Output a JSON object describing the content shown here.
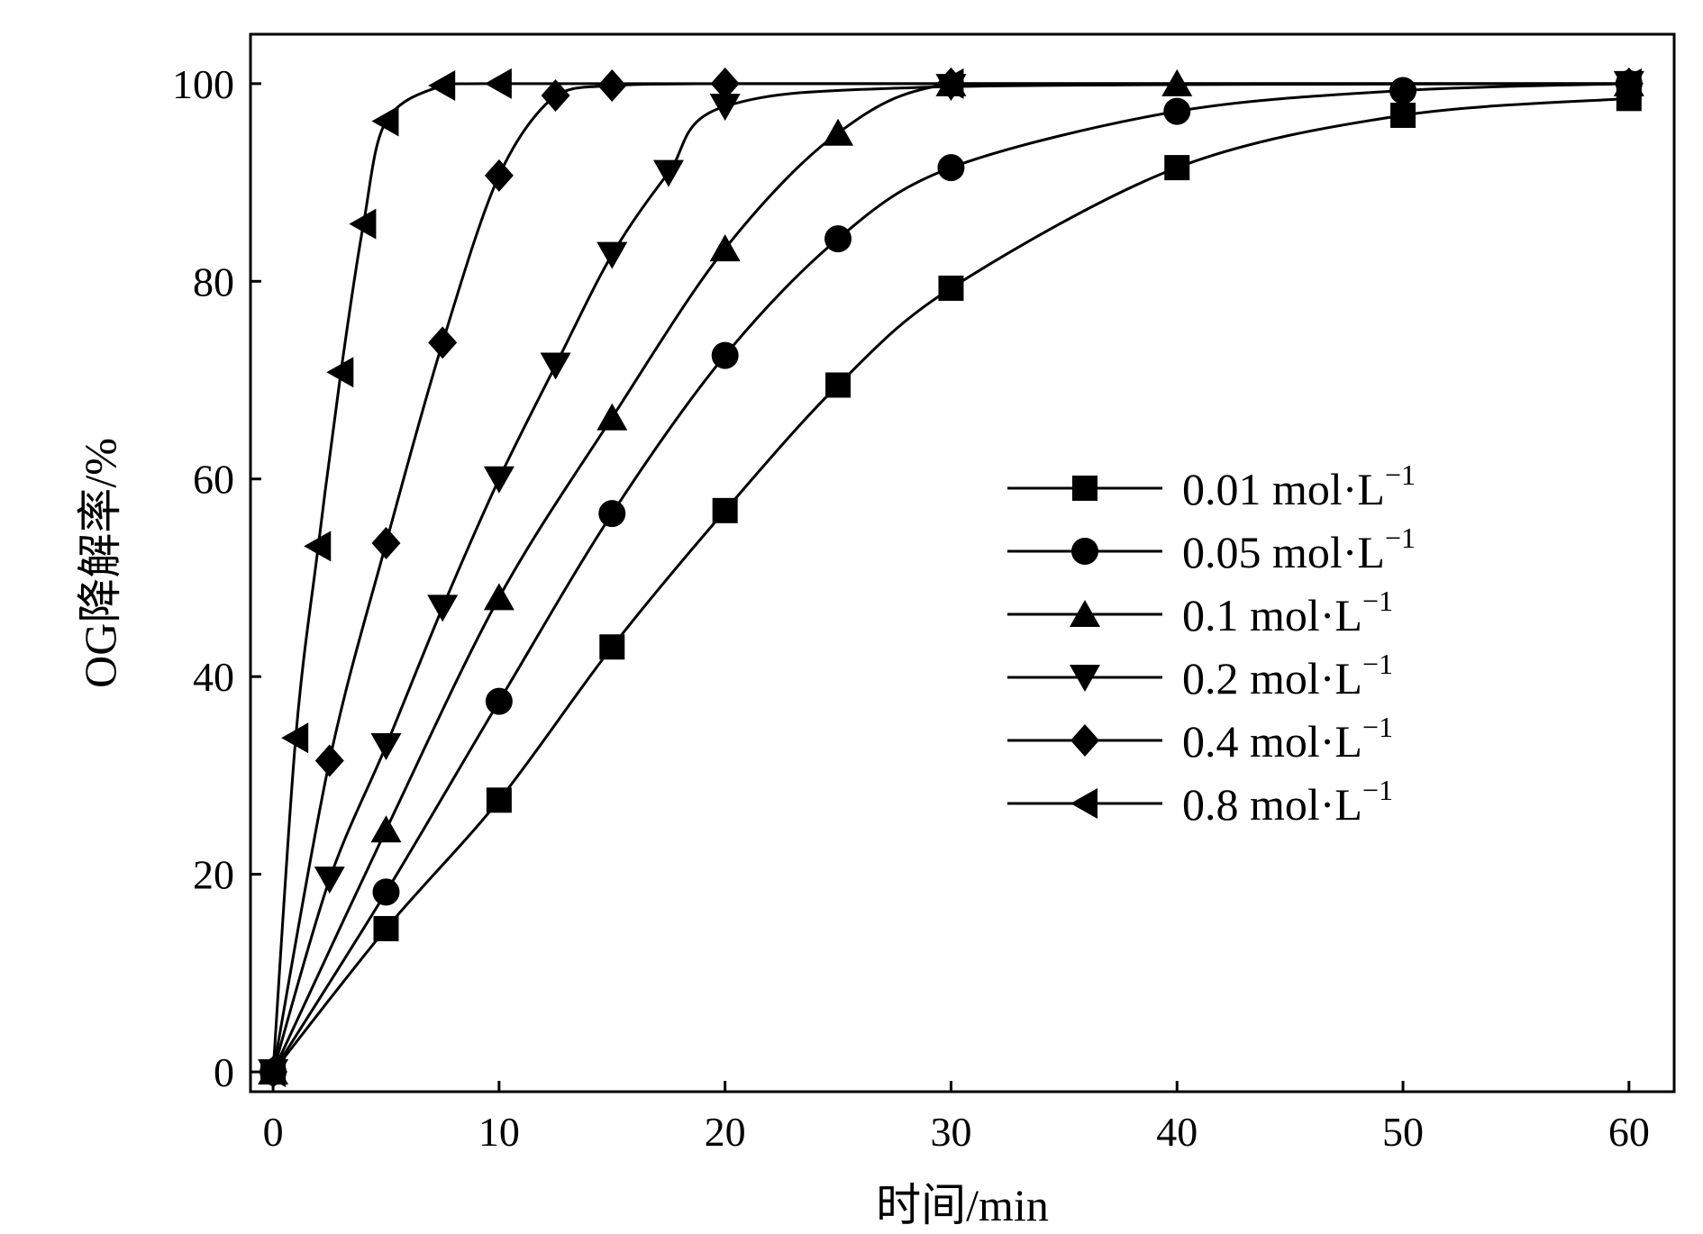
{
  "chart_data": {
    "type": "line",
    "title": "",
    "xlabel": "时间/min",
    "ylabel": "OG降解率/%",
    "xlim": [
      -1,
      62
    ],
    "ylim": [
      -2,
      105
    ],
    "xticks": [
      0,
      10,
      20,
      30,
      40,
      50,
      60
    ],
    "yticks": [
      0,
      20,
      40,
      60,
      80,
      100
    ],
    "grid": false,
    "legend_position": "center-right",
    "series": [
      {
        "name": "0.01 mol·L⁻¹",
        "marker": "square",
        "x": [
          0,
          5,
          10,
          15,
          20,
          25,
          30,
          40,
          50,
          60
        ],
        "y": [
          0,
          14.5,
          27.5,
          43,
          56.8,
          69.5,
          79.3,
          91.5,
          96.8,
          98.5
        ]
      },
      {
        "name": "0.05 mol·L⁻¹",
        "marker": "circle",
        "x": [
          0,
          5,
          10,
          15,
          20,
          25,
          30,
          40,
          50,
          60
        ],
        "y": [
          0,
          18.2,
          37.5,
          56.5,
          72.5,
          84.3,
          91.5,
          97.2,
          99.3,
          100
        ]
      },
      {
        "name": "0.1 mol·L⁻¹",
        "marker": "triangle-up",
        "x": [
          0,
          5,
          10,
          15,
          20,
          25,
          30,
          40,
          60
        ],
        "y": [
          0,
          24.5,
          48,
          66.2,
          83.3,
          95,
          100,
          100,
          100
        ]
      },
      {
        "name": "0.2 mol·L⁻¹",
        "marker": "triangle-down",
        "x": [
          0,
          2.5,
          5,
          7.5,
          10,
          12.5,
          15,
          17.5,
          20,
          30,
          60
        ],
        "y": [
          0,
          19.5,
          33,
          47,
          60,
          71.5,
          82.7,
          91,
          97.7,
          99.7,
          100
        ]
      },
      {
        "name": "0.4 mol·L⁻¹",
        "marker": "diamond",
        "x": [
          0,
          2.5,
          5,
          7.5,
          10,
          12.5,
          15,
          20,
          30,
          60
        ],
        "y": [
          0,
          31.5,
          53.5,
          73.8,
          90.7,
          98.8,
          99.8,
          100,
          100,
          100
        ]
      },
      {
        "name": "0.8 mol·L⁻¹",
        "marker": "triangle-left",
        "x": [
          0,
          1,
          2,
          3,
          4,
          5,
          7.5,
          10,
          30,
          60
        ],
        "y": [
          0,
          33.8,
          53.2,
          70.8,
          85.8,
          96.2,
          99.8,
          100,
          100,
          100
        ]
      }
    ]
  }
}
